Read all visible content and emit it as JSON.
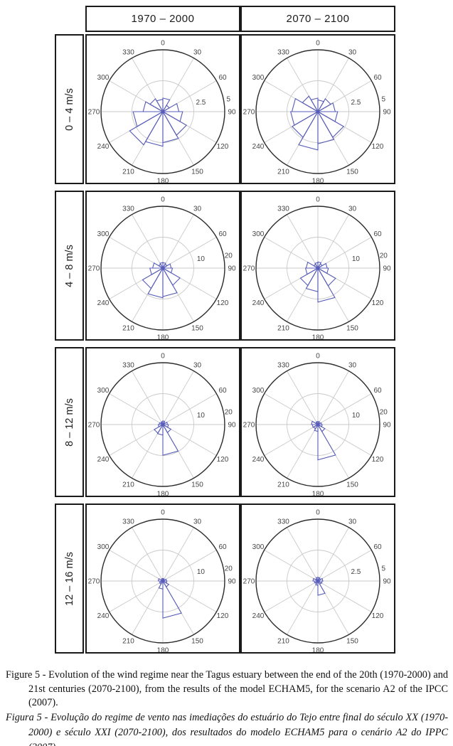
{
  "figure": {
    "columns": [
      "1970 – 2000",
      "2070 – 2100"
    ],
    "rows": [
      "0 – 4 m/s",
      "4 – 8 m/s",
      "8 – 12 m/s",
      "12 – 16 m/s"
    ]
  },
  "captions": {
    "english": "Figure 5 - Evolution of the wind regime near the Tagus estuary between the end of the 20th (1970-2000) and 21st centuries (2070-2100), from the results of the model ECHAM5, for the scenario A2 of the IPCC (2007).",
    "portuguese": "Figura 5 - Evolução do regime de vento nas imediações do estuário do Tejo entre final do século XX (1970-2000) e século XXI (2070-2100), dos resultados do modelo ECHAM5 para o cenário A2 do IPPC (2007)."
  },
  "colors": {
    "petal": "#575cb8",
    "grid": "#c9c9c9",
    "ring": "#2b2b2b",
    "plot_text": "#454545",
    "border": "#1a1a1a"
  },
  "chart_data": {
    "type": "polar-bar",
    "description": "Grid of wind-rose direction histograms (12 bins of 30°, 0° = North, clockwise) for four wind-speed classes (rows) and two periods (columns); bin values are occurrence frequencies (%) read from the radial rings.",
    "direction_bin_starts_deg": [
      0,
      30,
      60,
      90,
      120,
      150,
      180,
      210,
      240,
      270,
      300,
      330
    ],
    "angular_tick_labels": [
      "0",
      "30",
      "60",
      "90",
      "120",
      "150",
      "180",
      "210",
      "240",
      "270",
      "300",
      "330"
    ],
    "radial_tick_azimuth_deg": 78,
    "roses": [
      {
        "speed_class": "0 – 4 m/s",
        "period": "1970 – 2000",
        "rmax": 5,
        "radial_ticks": [
          "2.5",
          "5"
        ],
        "frequencies": [
          1.1,
          0.6,
          1.3,
          1.6,
          2.2,
          2.5,
          2.8,
          3.1,
          2.4,
          1.6,
          1.2,
          1.0
        ]
      },
      {
        "speed_class": "0 – 4 m/s",
        "period": "2070 – 2100",
        "rmax": 5,
        "radial_ticks": [
          "2.5",
          "5"
        ],
        "frequencies": [
          0.95,
          1.2,
          1.4,
          1.6,
          2.4,
          2.6,
          3.1,
          2.4,
          2.2,
          2.1,
          1.45,
          1.1
        ]
      },
      {
        "speed_class": "4 – 8 m/s",
        "period": "1970 – 2000",
        "rmax": 20,
        "radial_ticks": [
          "10",
          "20"
        ],
        "frequencies": [
          1.8,
          1.5,
          2.7,
          3.1,
          6.4,
          9.2,
          9.6,
          7.6,
          4.2,
          3.3,
          1.5,
          1.8
        ]
      },
      {
        "speed_class": "4 – 8 m/s",
        "period": "2070 – 2100",
        "rmax": 20,
        "radial_ticks": [
          "10",
          "20"
        ],
        "frequencies": [
          2.0,
          1.6,
          3.0,
          3.4,
          6.6,
          11.0,
          7.6,
          6.5,
          4.0,
          3.8,
          1.5,
          1.8
        ]
      },
      {
        "speed_class": "8 – 12 m/s",
        "period": "1970 – 2000",
        "rmax": 20,
        "radial_ticks": [
          "10",
          "20"
        ],
        "frequencies": [
          1.2,
          0.8,
          1.5,
          1.8,
          3.0,
          9.9,
          3.4,
          3.2,
          1.5,
          1.2,
          0.8,
          1.0
        ]
      },
      {
        "speed_class": "8 – 12 m/s",
        "period": "2070 – 2100",
        "rmax": 20,
        "radial_ticks": [
          "10",
          "20"
        ],
        "frequencies": [
          1.0,
          0.7,
          1.2,
          1.4,
          2.6,
          11.4,
          2.2,
          1.6,
          1.8,
          2.1,
          0.8,
          1.0
        ]
      },
      {
        "speed_class": "12 – 16 m/s",
        "period": "1970 – 2000",
        "rmax": 20,
        "radial_ticks": [
          "10",
          "20"
        ],
        "frequencies": [
          0.8,
          0.6,
          1.2,
          1.3,
          2.2,
          12.0,
          2.6,
          1.2,
          1.0,
          1.5,
          0.6,
          0.8
        ]
      },
      {
        "speed_class": "12 – 16 m/s",
        "period": "2070 – 2100",
        "rmax": 5,
        "radial_ticks": [
          "2.5",
          "5"
        ],
        "frequencies": [
          0.3,
          0.25,
          0.4,
          0.35,
          0.3,
          1.15,
          0.35,
          0.25,
          0.3,
          0.4,
          0.2,
          0.3
        ]
      }
    ]
  }
}
